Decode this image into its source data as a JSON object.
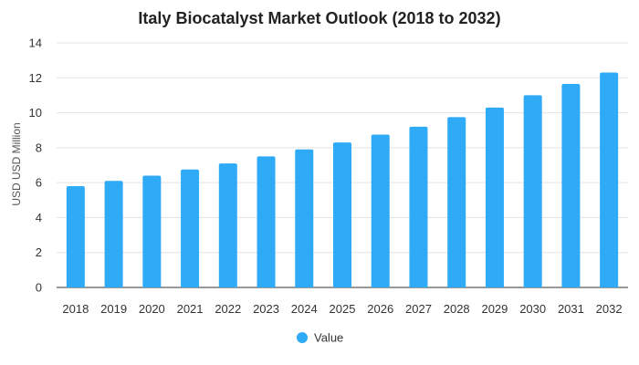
{
  "chart_data": {
    "type": "bar",
    "title": "Italy Biocatalyst Market Outlook (2018 to 2032)",
    "xlabel": "",
    "ylabel": "USD USD Million",
    "categories": [
      "2018",
      "2019",
      "2020",
      "2021",
      "2022",
      "2023",
      "2024",
      "2025",
      "2026",
      "2027",
      "2028",
      "2029",
      "2030",
      "2031",
      "2032"
    ],
    "series": [
      {
        "name": "Value",
        "values": [
          5.8,
          6.1,
          6.4,
          6.75,
          7.1,
          7.5,
          7.9,
          8.3,
          8.75,
          9.2,
          9.75,
          10.3,
          11.0,
          11.65,
          12.3
        ],
        "color": "#2eaaf6"
      }
    ],
    "ylim": [
      0,
      14
    ],
    "yticks": [
      0,
      2,
      4,
      6,
      8,
      10,
      12,
      14
    ],
    "grid": true,
    "legend": "bottom-center"
  }
}
